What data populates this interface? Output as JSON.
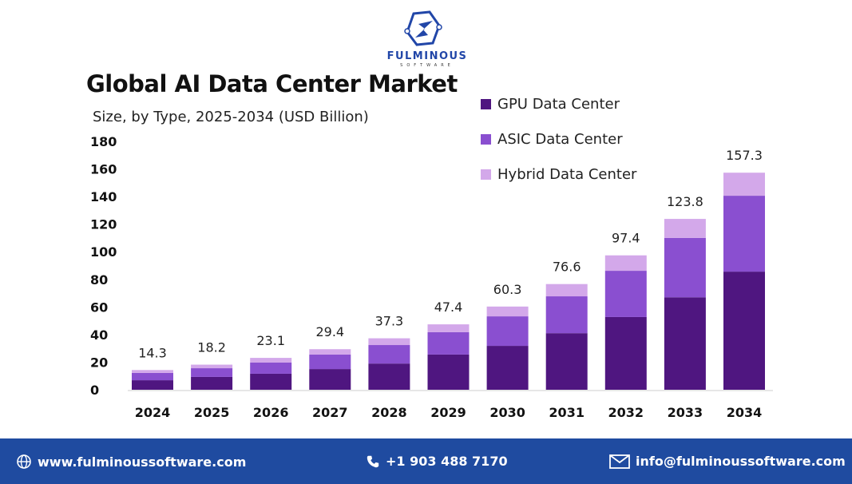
{
  "brand": {
    "name": "FULMINOUS",
    "tagline": "SOFTWARE"
  },
  "chart_data": {
    "type": "bar",
    "stacked": true,
    "title": "Global AI Data Center Market",
    "subtitle": "Size, by Type, 2025-2034 (USD Billion)",
    "categories": [
      "2024",
      "2025",
      "2026",
      "2027",
      "2028",
      "2029",
      "2030",
      "2031",
      "2032",
      "2033",
      "2034"
    ],
    "series": [
      {
        "name": "GPU Data Center",
        "color": "#4f1680",
        "values": [
          6.9,
          9.3,
          11.6,
          15.0,
          19.0,
          25.5,
          31.8,
          41.0,
          52.7,
          67.0,
          85.6
        ]
      },
      {
        "name": "ASIC Data Center",
        "color": "#8a4fd0",
        "values": [
          5.3,
          6.3,
          8.1,
          10.5,
          13.4,
          16.2,
          21.4,
          26.7,
          33.5,
          43.0,
          55.0
        ]
      },
      {
        "name": "Hybrid Data Center",
        "color": "#d3a8ea",
        "values": [
          2.1,
          2.6,
          3.4,
          3.9,
          4.9,
          5.7,
          7.1,
          8.9,
          11.2,
          13.8,
          16.7
        ]
      }
    ],
    "totals": [
      "14.3",
      "18.2",
      "23.1",
      "29.4",
      "37.3",
      "47.4",
      "60.3",
      "76.6",
      "97.4",
      "123.8",
      "157.3"
    ],
    "yticks": [
      0,
      20,
      40,
      60,
      80,
      100,
      120,
      140,
      160,
      180
    ],
    "ylim": [
      0,
      180
    ],
    "grid": false,
    "legend_position": "top-right"
  },
  "footer": {
    "website": "www.fulminoussoftware.com",
    "phone": "+1 903 488 7170",
    "email": "info@fulminoussoftware.com"
  }
}
